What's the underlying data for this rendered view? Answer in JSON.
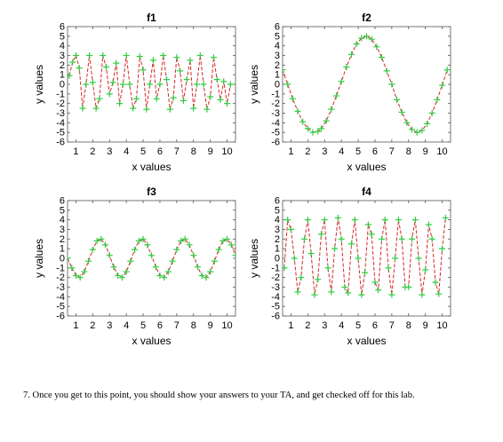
{
  "chart_data": [
    {
      "type": "line",
      "title": "f1",
      "xlabel": "x values",
      "ylabel": "y values",
      "xlim": [
        0.5,
        10.5
      ],
      "ylim": [
        -6,
        6
      ],
      "x_ticks": [
        1,
        2,
        3,
        4,
        5,
        6,
        7,
        8,
        9,
        10
      ],
      "y_ticks": [
        6,
        5,
        4,
        3,
        2,
        1,
        0,
        -1,
        -2,
        -3,
        -4,
        -5,
        -6
      ],
      "x_tick_labels": [
        "1",
        "2",
        "3",
        "4",
        "5",
        "6",
        "7",
        "8",
        "9",
        "10"
      ],
      "y_tick_labels": [
        "6",
        "5",
        "4",
        "3",
        "2",
        "1",
        "0",
        "-1",
        "-2",
        "-3",
        "-4",
        "-5",
        "-6"
      ],
      "line_color": "#d62728",
      "line_style": "dashed",
      "marker_color": "#2ecc40",
      "marker": "+",
      "series": [
        {
          "x": [
            0.6,
            0.8,
            1,
            1.2,
            1.4,
            1.6,
            1.8,
            2,
            2.2,
            2.4,
            2.6,
            2.8,
            3,
            3.2,
            3.4,
            3.6,
            3.8,
            4,
            4.2,
            4.4,
            4.6,
            4.8,
            5,
            5.2,
            5.4,
            5.6,
            5.8,
            6,
            6.2,
            6.4,
            6.6,
            6.8,
            7,
            7.2,
            7.4,
            7.6,
            7.8,
            8,
            8.2,
            8.4,
            8.6,
            8.8,
            9,
            9.2,
            9.4,
            9.6,
            9.8,
            10,
            10.2
          ],
          "y": [
            0.9,
            2.3,
            3,
            1.7,
            -2.5,
            0,
            3,
            0.2,
            -2.5,
            -1.5,
            3,
            1.8,
            -1,
            0.2,
            2.2,
            -2,
            0,
            3,
            0,
            -2.5,
            -1.5,
            2.9,
            1.5,
            -2.6,
            0,
            2.5,
            -1.5,
            0,
            3,
            0.5,
            -2.6,
            -1.4,
            2.8,
            1.4,
            -1.7,
            0.5,
            2.5,
            -2.5,
            0,
            3,
            0,
            -2.6,
            -1.3,
            2.8,
            0.5,
            -1.6,
            0.3,
            -2,
            0
          ]
        }
      ]
    },
    {
      "type": "line",
      "title": "f2",
      "xlabel": "x values",
      "ylabel": "y values",
      "xlim": [
        0.5,
        10.5
      ],
      "ylim": [
        -6,
        6
      ],
      "x_ticks": [
        1,
        2,
        3,
        4,
        5,
        6,
        7,
        8,
        9,
        10
      ],
      "y_ticks": [
        6,
        5,
        4,
        3,
        2,
        1,
        0,
        -1,
        -2,
        -3,
        -4,
        -5,
        -6
      ],
      "x_tick_labels": [
        "1",
        "2",
        "3",
        "4",
        "5",
        "6",
        "7",
        "8",
        "9",
        "10"
      ],
      "y_tick_labels": [
        "6",
        "5",
        "4",
        "3",
        "2",
        "1",
        "0",
        "-1",
        "-2",
        "-3",
        "-4",
        "-5",
        "-6"
      ],
      "line_color": "#d62728",
      "line_style": "dashed",
      "marker_color": "#2ecc40",
      "marker": "+",
      "series": [
        {
          "x": [
            0.5,
            0.8,
            1.1,
            1.4,
            1.7,
            2,
            2.3,
            2.6,
            2.8,
            3.1,
            3.4,
            3.7,
            4,
            4.3,
            4.6,
            4.9,
            5.2,
            5.5,
            5.8,
            6.1,
            6.4,
            6.7,
            7,
            7.3,
            7.6,
            7.9,
            8.2,
            8.5,
            8.8,
            9.1,
            9.4,
            9.7,
            10,
            10.3
          ],
          "y": [
            1.5,
            0,
            -1.5,
            -2.8,
            -3.9,
            -4.6,
            -5,
            -4.9,
            -4.6,
            -3.8,
            -2.6,
            -1.2,
            0.3,
            1.8,
            3.1,
            4.2,
            4.8,
            5,
            4.7,
            3.9,
            2.8,
            1.4,
            0,
            -1.6,
            -2.9,
            -4,
            -4.7,
            -5,
            -4.8,
            -4.1,
            -3,
            -1.6,
            -0.1,
            1.5
          ]
        }
      ]
    },
    {
      "type": "line",
      "title": "f3",
      "xlabel": "x values",
      "ylabel": "y values",
      "xlim": [
        0.5,
        10.5
      ],
      "ylim": [
        -6,
        6
      ],
      "x_ticks": [
        1,
        2,
        3,
        4,
        5,
        6,
        7,
        8,
        9,
        10
      ],
      "y_ticks": [
        6,
        5,
        4,
        3,
        2,
        1,
        0,
        -1,
        -2,
        -3,
        -4,
        -5,
        -6
      ],
      "x_tick_labels": [
        "1",
        "2",
        "3",
        "4",
        "5",
        "6",
        "7",
        "8",
        "9",
        "10"
      ],
      "y_tick_labels": [
        "6",
        "5",
        "4",
        "3",
        "2",
        "1",
        "0",
        "-1",
        "-2",
        "-3",
        "-4",
        "-5",
        "-6"
      ],
      "line_color": "#d62728",
      "line_style": "dashed",
      "marker_color": "#2ecc40",
      "marker": "+",
      "series": [
        {
          "x": [
            0.5,
            0.75,
            1,
            1.25,
            1.5,
            1.75,
            2,
            2.25,
            2.5,
            2.75,
            3,
            3.25,
            3.5,
            3.75,
            4,
            4.25,
            4.5,
            4.75,
            5,
            5.25,
            5.5,
            5.75,
            6,
            6.25,
            6.5,
            6.75,
            7,
            7.25,
            7.5,
            7.75,
            8,
            8.25,
            8.5,
            8.75,
            9,
            9.25,
            9.5,
            9.75,
            10,
            10.25,
            10.5
          ],
          "y": [
            0,
            -1,
            -1.8,
            -2,
            -1.4,
            -0.3,
            0.9,
            1.8,
            2,
            1.4,
            0.3,
            -0.9,
            -1.8,
            -2,
            -1.4,
            -0.3,
            0.9,
            1.8,
            2,
            1.4,
            0.3,
            -0.9,
            -1.8,
            -2,
            -1.4,
            -0.3,
            0.9,
            1.8,
            2,
            1.4,
            0.3,
            -0.9,
            -1.8,
            -2,
            -1.4,
            -0.3,
            0.9,
            1.8,
            2,
            1.4,
            0.3
          ]
        }
      ]
    },
    {
      "type": "line",
      "title": "f4",
      "xlabel": "x values",
      "ylabel": "y values",
      "xlim": [
        0.5,
        10.5
      ],
      "ylim": [
        -6,
        6
      ],
      "x_ticks": [
        1,
        2,
        3,
        4,
        5,
        6,
        7,
        8,
        9,
        10
      ],
      "y_ticks": [
        6,
        5,
        4,
        3,
        2,
        1,
        0,
        -1,
        -2,
        -3,
        -4,
        -5,
        -6
      ],
      "x_tick_labels": [
        "1",
        "2",
        "3",
        "4",
        "5",
        "6",
        "7",
        "8",
        "9",
        "10"
      ],
      "y_tick_labels": [
        "6",
        "5",
        "4",
        "3",
        "2",
        "1",
        "0",
        "-1",
        "-2",
        "-3",
        "-4",
        "-5",
        "-6"
      ],
      "line_color": "#d62728",
      "line_style": "dashed",
      "marker_color": "#2ecc40",
      "marker": "+",
      "series": [
        {
          "x": [
            0.6,
            0.8,
            1,
            1.2,
            1.4,
            1.6,
            1.8,
            2,
            2.2,
            2.4,
            2.6,
            2.8,
            3,
            3.2,
            3.4,
            3.6,
            3.8,
            4,
            4.2,
            4.4,
            4.6,
            4.8,
            5,
            5.2,
            5.4,
            5.6,
            5.8,
            6,
            6.2,
            6.4,
            6.6,
            6.8,
            7,
            7.2,
            7.4,
            7.6,
            7.8,
            8,
            8.2,
            8.4,
            8.6,
            8.8,
            9,
            9.2,
            9.4,
            9.6,
            9.8,
            10,
            10.2
          ],
          "y": [
            -1,
            4,
            3,
            0,
            -3.5,
            -2,
            2,
            4,
            0.5,
            -3.8,
            -2.2,
            2.5,
            4,
            -1,
            -3.5,
            1,
            4.2,
            2,
            -3,
            -3.6,
            1.5,
            4,
            0,
            -3.8,
            -1.5,
            3.5,
            2.5,
            -2.5,
            -3.3,
            2,
            4,
            -1,
            -3.8,
            0,
            4,
            2,
            -3,
            -3,
            2,
            4,
            0,
            -3.8,
            -1.2,
            3.5,
            2,
            -2.5,
            -3.7,
            1,
            4.2
          ]
        }
      ]
    }
  ],
  "instruction_text": "7.  Once you get to this point, you should show your answers to your TA, and get checked off for this lab."
}
